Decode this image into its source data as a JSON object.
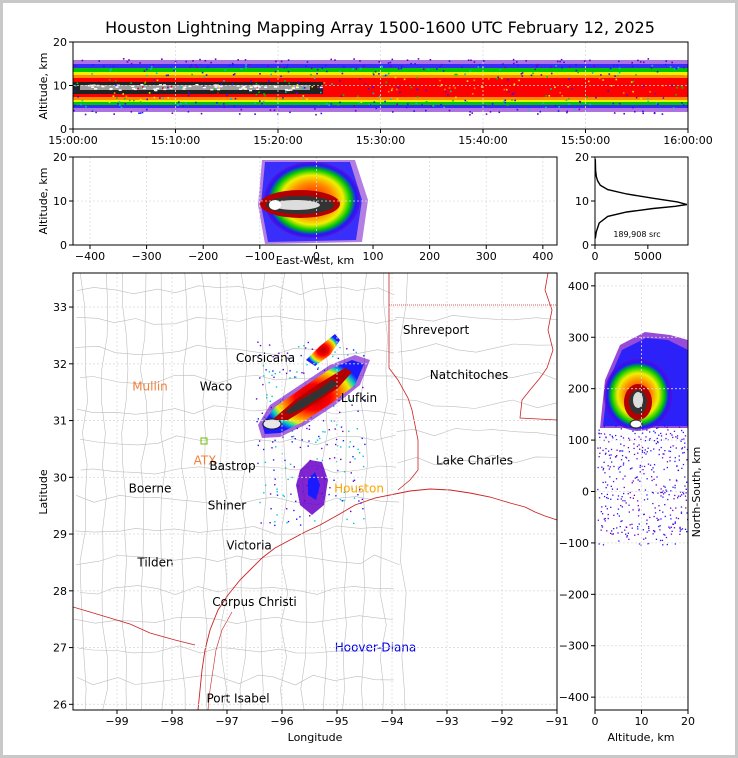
{
  "title": "Houston Lightning Mapping Array 1500-1600 UTC February 12, 2025",
  "chart_data": [
    {
      "panel": "altitude-time",
      "type": "heatmap",
      "xlabel": "",
      "ylabel": "Altitude, km",
      "x_ticks": [
        "15:00:00",
        "15:10:00",
        "15:20:00",
        "15:30:00",
        "15:40:00",
        "15:50:00",
        "16:00:00"
      ],
      "xlim": [
        "15:00:00",
        "16:00:00"
      ],
      "ylim": [
        0,
        20
      ],
      "y_ticks": [
        0,
        10,
        20
      ],
      "band": {
        "altitude_core_km": [
          8,
          11
        ],
        "altitude_extent_km": [
          3,
          17
        ]
      },
      "grid": true
    },
    {
      "panel": "altitude-eastwest",
      "type": "heatmap",
      "xlabel": "East-West, km",
      "ylabel": "Altitude, km",
      "xlim": [
        -430,
        425
      ],
      "ylim": [
        0,
        20
      ],
      "x_ticks": [
        -400,
        -300,
        -200,
        -100,
        0,
        100,
        200,
        300,
        400
      ],
      "y_ticks": [
        0,
        10,
        20
      ],
      "cluster": {
        "x_range_km": [
          -100,
          90
        ],
        "altitude_range_km": [
          0,
          20
        ],
        "core_altitude_km": 9
      },
      "grid": true
    },
    {
      "panel": "altitude-histogram",
      "type": "line",
      "xlabel": "",
      "ylabel": "",
      "annotation": "189,908 src",
      "xlim": [
        0,
        8800
      ],
      "ylim": [
        0,
        20
      ],
      "x_ticks": [
        0,
        5000
      ],
      "y_ticks": [
        0,
        10,
        20
      ],
      "x": [
        30,
        120,
        400,
        1200,
        3000,
        5500,
        7600,
        8700,
        7800,
        5600,
        3000,
        1200,
        500,
        250,
        120,
        60,
        30
      ],
      "y": [
        1.5,
        3,
        5,
        6.5,
        7.5,
        8.3,
        8.8,
        9.2,
        9.8,
        10.6,
        11.6,
        12.6,
        13.6,
        14.6,
        15.6,
        17,
        19.5
      ]
    },
    {
      "panel": "plan-view",
      "type": "scatter",
      "xlabel": "Longitude",
      "ylabel": "Latitude",
      "xlim": [
        -99.8,
        -91
      ],
      "ylim": [
        25.9,
        33.6
      ],
      "x_ticks": [
        -99,
        -98,
        -97,
        -96,
        -95,
        -94,
        -93,
        -92,
        -91
      ],
      "y_ticks": [
        26,
        27,
        28,
        29,
        30,
        31,
        32,
        33
      ],
      "labels": [
        {
          "text": "Shreveport",
          "lon": -93.2,
          "lat": 32.6,
          "color": "#000000"
        },
        {
          "text": "Corsicana",
          "lon": -96.3,
          "lat": 32.1,
          "color": "#000000"
        },
        {
          "text": "Mullin",
          "lon": -98.4,
          "lat": 31.6,
          "color": "#f07f3c"
        },
        {
          "text": "Waco",
          "lon": -97.2,
          "lat": 31.6,
          "color": "#000000"
        },
        {
          "text": "Natchitoches",
          "lon": -92.6,
          "lat": 31.8,
          "color": "#000000"
        },
        {
          "text": "Lufkin",
          "lon": -94.6,
          "lat": 31.4,
          "color": "#000000"
        },
        {
          "text": "ATX",
          "lon": -97.4,
          "lat": 30.3,
          "color": "#f07f3c"
        },
        {
          "text": "Bastrop",
          "lon": -96.9,
          "lat": 30.2,
          "color": "#000000"
        },
        {
          "text": "Lake Charles",
          "lon": -92.5,
          "lat": 30.3,
          "color": "#000000"
        },
        {
          "text": "Boerne",
          "lon": -98.4,
          "lat": 29.8,
          "color": "#000000"
        },
        {
          "text": "Houston",
          "lon": -94.6,
          "lat": 29.8,
          "color": "#ffa500"
        },
        {
          "text": "Shiner",
          "lon": -97.0,
          "lat": 29.5,
          "color": "#000000"
        },
        {
          "text": "Victoria",
          "lon": -96.6,
          "lat": 28.8,
          "color": "#000000"
        },
        {
          "text": "Tilden",
          "lon": -98.3,
          "lat": 28.5,
          "color": "#000000"
        },
        {
          "text": "Corpus Christi",
          "lon": -96.5,
          "lat": 27.8,
          "color": "#000000"
        },
        {
          "text": "Hoover-Diana",
          "lon": -94.3,
          "lat": 27.0,
          "color": "#0000ee"
        },
        {
          "text": "Port Isabel",
          "lon": -96.8,
          "lat": 26.1,
          "color": "#000000"
        }
      ],
      "grid": true
    },
    {
      "panel": "northsouth-altitude",
      "type": "heatmap",
      "xlabel": "Altitude, km",
      "ylabel": "North-South, km",
      "xlim": [
        0,
        20
      ],
      "ylim": [
        -425,
        425
      ],
      "x_ticks": [
        0,
        10,
        20
      ],
      "y_ticks": [
        -400,
        -300,
        -200,
        -100,
        0,
        100,
        200,
        300,
        400
      ],
      "cluster": {
        "ns_range_km": [
          110,
          310
        ],
        "core_ns_km": 180,
        "core_altitude_km": 10
      },
      "grid": true
    }
  ],
  "colors": {
    "background": "#c8c8c8",
    "panel": "#ffffff",
    "state_lines": "#cc2222",
    "county_lines": "#bbbbbb",
    "density_scale": [
      "#6a00c8",
      "#1a1aff",
      "#00c8c8",
      "#00c800",
      "#f0f000",
      "#ff8c00",
      "#ff0000",
      "#b40000",
      "#000000",
      "#787878",
      "#ffffff"
    ]
  }
}
